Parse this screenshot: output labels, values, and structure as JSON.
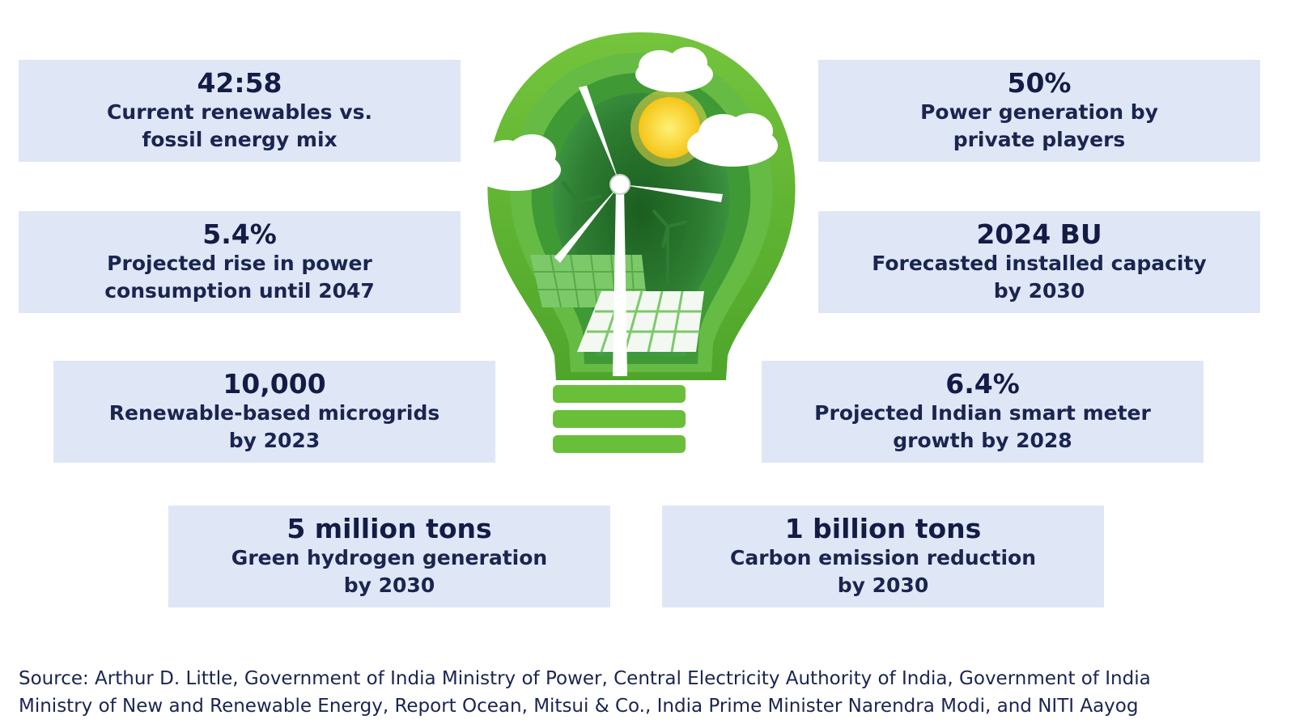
{
  "stats": [
    {
      "value": "42:58",
      "desc_line1": "Current renewables vs.",
      "desc_line2": "fossil energy mix"
    },
    {
      "value": "50%",
      "desc_line1": "Power generation by",
      "desc_line2": "private players"
    },
    {
      "value": "5.4%",
      "desc_line1": "Projected rise in power",
      "desc_line2": "consumption until 2047"
    },
    {
      "value": "2024 BU",
      "desc_line1": "Forecasted installed capacity",
      "desc_line2": "by 2030"
    },
    {
      "value": "10,000",
      "desc_line1": "Renewable-based microgrids",
      "desc_line2": "by 2023"
    },
    {
      "value": "6.4%",
      "desc_line1": "Projected Indian smart meter",
      "desc_line2": "growth by 2028"
    },
    {
      "value": "5 million tons",
      "desc_line1": "Green hydrogen generation",
      "desc_line2": "by 2030"
    },
    {
      "value": "1 billion tons",
      "desc_line1": "Carbon emission reduction",
      "desc_line2": "by 2030"
    }
  ],
  "source": {
    "line1": "Source: Arthur D. Little, Government of India Ministry of Power, Central Electricity Authority of India, Government of India",
    "line2": "Ministry of New and Renewable Energy, Report Ocean, Mitsui & Co., India Prime Minister Narendra Modi, and NITI Aayog"
  },
  "colors": {
    "box_background": "#dfe7f6",
    "text": "#15204a",
    "bulb_green": "#4caf2f",
    "sun_yellow": "#f7d51d"
  }
}
